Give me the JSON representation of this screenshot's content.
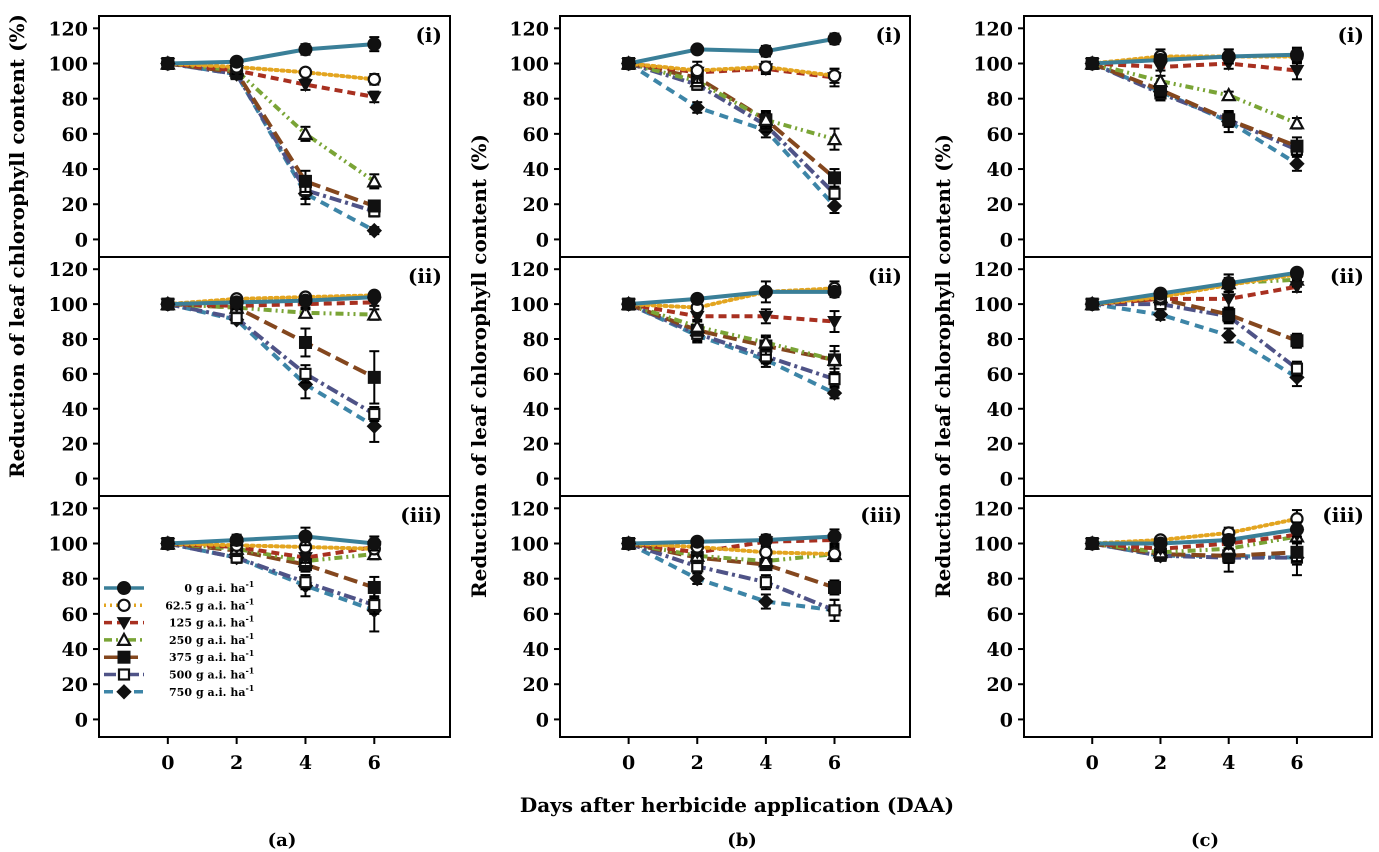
{
  "ylabel": "Reduction of leaf chlorophyll content (%)",
  "xlabel": "Days after herbicide application (DAA)",
  "panel_captions": [
    "(a)",
    "(b)",
    "(c)"
  ],
  "subpanel_labels": [
    "(i)",
    "(ii)",
    "(iii)"
  ],
  "legend": [
    {
      "dose": "0",
      "unit": "g a.i. ha",
      "sup": "-1"
    },
    {
      "dose": "62.5",
      "unit": "g a.i. ha",
      "sup": "-1"
    },
    {
      "dose": "125",
      "unit": "g a.i. ha",
      "sup": "-1"
    },
    {
      "dose": "250",
      "unit": "g a.i. ha",
      "sup": "-1"
    },
    {
      "dose": "375",
      "unit": "g a.i. ha",
      "sup": "-1"
    },
    {
      "dose": "500",
      "unit": "g a.i. ha",
      "sup": "-1"
    },
    {
      "dose": "750",
      "unit": "g a.i. ha",
      "sup": "-1"
    }
  ],
  "series_style": [
    {
      "color": "#3a7f98",
      "dash": "",
      "marker": "circle-filled"
    },
    {
      "color": "#e3a520",
      "dash": "2,4",
      "marker": "circle-open"
    },
    {
      "color": "#a83020",
      "dash": "8,5",
      "marker": "triangle-down-filled"
    },
    {
      "color": "#7aa436",
      "dash": "8,4,2,4,2,4",
      "marker": "triangle-up-open"
    },
    {
      "color": "#84471e",
      "dash": "14,6",
      "marker": "square-filled"
    },
    {
      "color": "#4f5387",
      "dash": "12,4,3,4",
      "marker": "square-open"
    },
    {
      "color": "#3d85a7",
      "dash": "9,6",
      "marker": "diamond-filled"
    }
  ],
  "chart_data": {
    "type": "line",
    "x": [
      0,
      2,
      4,
      6
    ],
    "xticks": [
      "0",
      "2",
      "4",
      "6"
    ],
    "xlim": [
      -2,
      8.2
    ],
    "ylim": [
      -10,
      127
    ],
    "yticks": [
      "0",
      "20",
      "40",
      "60",
      "80",
      "100",
      "120"
    ],
    "series_names": [
      "0 g a.i. ha-1",
      "62.5 g a.i. ha-1",
      "125 g a.i. ha-1",
      "250 g a.i. ha-1",
      "375 g a.i. ha-1",
      "500 g a.i. ha-1",
      "750 g a.i. ha-1"
    ],
    "panels": [
      {
        "col": 0,
        "row": 0,
        "values": [
          [
            100,
            101,
            108,
            111
          ],
          [
            100,
            98,
            95,
            91
          ],
          [
            100,
            96,
            88,
            81
          ],
          [
            100,
            96,
            60,
            33
          ],
          [
            100,
            95,
            33,
            19
          ],
          [
            100,
            94,
            28,
            16
          ],
          [
            100,
            94,
            26,
            5
          ]
        ],
        "errors": [
          [
            2,
            2,
            3,
            4
          ],
          [
            2,
            2,
            2,
            3
          ],
          [
            2,
            2,
            3,
            3
          ],
          [
            2,
            2,
            4,
            4
          ],
          [
            2,
            2,
            6,
            3
          ],
          [
            2,
            2,
            5,
            3
          ],
          [
            2,
            2,
            6,
            2
          ]
        ]
      },
      {
        "col": 0,
        "row": 1,
        "values": [
          [
            100,
            101,
            102,
            104
          ],
          [
            100,
            103,
            104,
            105
          ],
          [
            100,
            99,
            100,
            101
          ],
          [
            100,
            98,
            95,
            94
          ],
          [
            100,
            98,
            78,
            58
          ],
          [
            100,
            92,
            60,
            37
          ],
          [
            100,
            91,
            54,
            30
          ]
        ],
        "errors": [
          [
            2,
            2,
            2,
            2
          ],
          [
            2,
            2,
            2,
            2
          ],
          [
            2,
            2,
            2,
            2
          ],
          [
            2,
            2,
            2,
            3
          ],
          [
            2,
            2,
            8,
            15
          ],
          [
            2,
            2,
            5,
            4
          ],
          [
            2,
            2,
            8,
            9
          ]
        ]
      },
      {
        "col": 0,
        "row": 2,
        "values": [
          [
            100,
            102,
            104,
            100
          ],
          [
            100,
            99,
            98,
            97
          ],
          [
            100,
            98,
            92,
            98
          ],
          [
            100,
            97,
            90,
            94
          ],
          [
            100,
            96,
            88,
            75
          ],
          [
            100,
            92,
            78,
            65
          ],
          [
            100,
            92,
            76,
            62
          ]
        ],
        "errors": [
          [
            2,
            3,
            5,
            4
          ],
          [
            2,
            2,
            3,
            3
          ],
          [
            2,
            2,
            3,
            3
          ],
          [
            2,
            2,
            3,
            3
          ],
          [
            2,
            3,
            4,
            6
          ],
          [
            2,
            2,
            4,
            5
          ],
          [
            2,
            3,
            6,
            12
          ]
        ]
      },
      {
        "col": 1,
        "row": 0,
        "values": [
          [
            100,
            108,
            107,
            114
          ],
          [
            100,
            96,
            98,
            93
          ],
          [
            100,
            95,
            97,
            92
          ],
          [
            100,
            90,
            68,
            57
          ],
          [
            100,
            92,
            68,
            35
          ],
          [
            100,
            88,
            65,
            26
          ],
          [
            100,
            75,
            62,
            19
          ]
        ],
        "errors": [
          [
            2,
            2,
            3,
            3
          ],
          [
            2,
            2,
            3,
            4
          ],
          [
            2,
            6,
            3,
            5
          ],
          [
            2,
            3,
            4,
            6
          ],
          [
            2,
            3,
            5,
            5
          ],
          [
            2,
            3,
            4,
            3
          ],
          [
            2,
            3,
            4,
            4
          ]
        ]
      },
      {
        "col": 1,
        "row": 1,
        "values": [
          [
            100,
            103,
            107,
            107
          ],
          [
            100,
            98,
            107,
            109
          ],
          [
            100,
            93,
            93,
            90
          ],
          [
            100,
            87,
            78,
            68
          ],
          [
            100,
            85,
            76,
            68
          ],
          [
            100,
            83,
            70,
            57
          ],
          [
            100,
            82,
            68,
            49
          ]
        ],
        "errors": [
          [
            2,
            2,
            2,
            3
          ],
          [
            2,
            2,
            6,
            4
          ],
          [
            2,
            2,
            4,
            6
          ],
          [
            2,
            3,
            4,
            5
          ],
          [
            2,
            3,
            5,
            8
          ],
          [
            2,
            4,
            4,
            4
          ],
          [
            2,
            4,
            4,
            3
          ]
        ]
      },
      {
        "col": 1,
        "row": 2,
        "values": [
          [
            100,
            101,
            102,
            104
          ],
          [
            100,
            98,
            95,
            94
          ],
          [
            100,
            95,
            101,
            102
          ],
          [
            100,
            93,
            90,
            94
          ],
          [
            100,
            92,
            88,
            75
          ],
          [
            100,
            87,
            78,
            62
          ],
          [
            100,
            80,
            67,
            62
          ]
        ],
        "errors": [
          [
            2,
            2,
            3,
            4
          ],
          [
            2,
            2,
            3,
            3
          ],
          [
            2,
            2,
            3,
            3
          ],
          [
            2,
            2,
            3,
            4
          ],
          [
            2,
            3,
            3,
            4
          ],
          [
            2,
            3,
            4,
            6
          ],
          [
            2,
            3,
            4,
            6
          ]
        ]
      },
      {
        "col": 2,
        "row": 0,
        "values": [
          [
            100,
            102,
            104,
            105
          ],
          [
            100,
            104,
            104,
            104
          ],
          [
            100,
            98,
            100,
            96
          ],
          [
            100,
            90,
            82,
            66
          ],
          [
            100,
            85,
            68,
            53
          ],
          [
            100,
            83,
            68,
            51
          ],
          [
            100,
            84,
            67,
            43
          ]
        ],
        "errors": [
          [
            2,
            3,
            4,
            4
          ],
          [
            2,
            4,
            4,
            4
          ],
          [
            2,
            2,
            3,
            5
          ],
          [
            2,
            3,
            2,
            3
          ],
          [
            2,
            4,
            4,
            5
          ],
          [
            2,
            4,
            4,
            4
          ],
          [
            2,
            4,
            6,
            4
          ]
        ]
      },
      {
        "col": 2,
        "row": 1,
        "values": [
          [
            100,
            106,
            112,
            118
          ],
          [
            100,
            104,
            111,
            117
          ],
          [
            100,
            103,
            103,
            110
          ],
          [
            100,
            104,
            112,
            114
          ],
          [
            100,
            103,
            94,
            79
          ],
          [
            100,
            100,
            93,
            63
          ],
          [
            100,
            94,
            82,
            58
          ]
        ],
        "errors": [
          [
            2,
            2,
            5,
            2
          ],
          [
            2,
            3,
            4,
            3
          ],
          [
            2,
            2,
            6,
            3
          ],
          [
            2,
            3,
            5,
            4
          ],
          [
            2,
            2,
            4,
            4
          ],
          [
            2,
            3,
            4,
            4
          ],
          [
            2,
            3,
            4,
            5
          ]
        ]
      },
      {
        "col": 2,
        "row": 2,
        "values": [
          [
            100,
            100,
            102,
            108
          ],
          [
            100,
            102,
            106,
            114
          ],
          [
            100,
            97,
            100,
            105
          ],
          [
            100,
            95,
            97,
            104
          ],
          [
            100,
            94,
            93,
            95
          ],
          [
            100,
            93,
            92,
            92
          ],
          [
            100,
            93,
            93,
            92
          ]
        ],
        "errors": [
          [
            2,
            2,
            3,
            4
          ],
          [
            2,
            2,
            3,
            5
          ],
          [
            2,
            2,
            3,
            4
          ],
          [
            2,
            2,
            3,
            3
          ],
          [
            2,
            2,
            4,
            5
          ],
          [
            2,
            2,
            8,
            10
          ],
          [
            2,
            2,
            4,
            4
          ]
        ]
      }
    ]
  }
}
